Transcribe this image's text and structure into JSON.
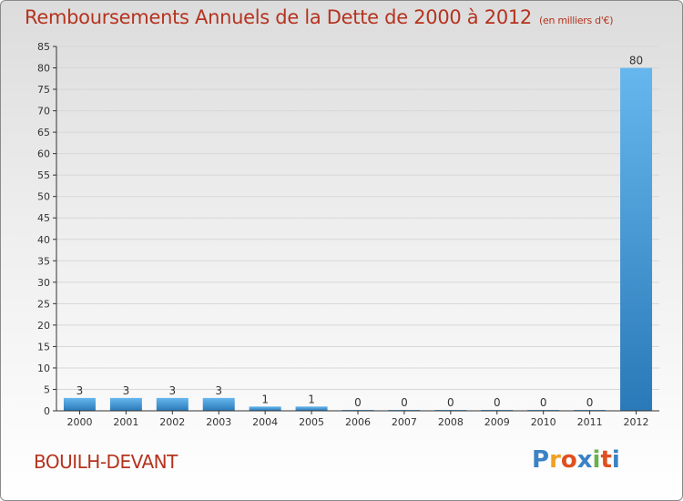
{
  "title": "Remboursements Annuels de la Dette de 2000 à 2012",
  "unit": "(en milliers d'€)",
  "commune": "BOUILH-DEVANT",
  "logo": {
    "letters": [
      "P",
      "r",
      "o",
      "x",
      "i",
      "t",
      "i"
    ],
    "colors": [
      "#3b82c4",
      "#f0a020",
      "#e05020",
      "#3b82c4",
      "#6ab04c",
      "#e05020",
      "#3b82c4"
    ]
  },
  "colors": {
    "title": "#b5331f",
    "bar_top": "#66b7ee",
    "bar_bottom": "#2a79b8",
    "axis": "#333333",
    "grid": "#d7d7d7"
  },
  "chart_data": {
    "type": "bar",
    "categories": [
      "2000",
      "2001",
      "2002",
      "2003",
      "2004",
      "2005",
      "2006",
      "2007",
      "2008",
      "2009",
      "2010",
      "2011",
      "2012"
    ],
    "values": [
      3,
      3,
      3,
      3,
      1,
      1,
      0,
      0,
      0,
      0,
      0,
      0,
      80
    ],
    "data_labels": [
      "3",
      "3",
      "3",
      "3",
      "1",
      "1",
      "0",
      "0",
      "0",
      "0",
      "0",
      "0",
      "80"
    ],
    "ylim": [
      0,
      85
    ],
    "yticks": [
      0,
      5,
      10,
      15,
      20,
      25,
      30,
      35,
      40,
      45,
      50,
      55,
      60,
      65,
      70,
      75,
      80,
      85
    ],
    "grid": true,
    "title": "Remboursements Annuels de la Dette de 2000 à 2012",
    "xlabel": "",
    "ylabel": ""
  }
}
